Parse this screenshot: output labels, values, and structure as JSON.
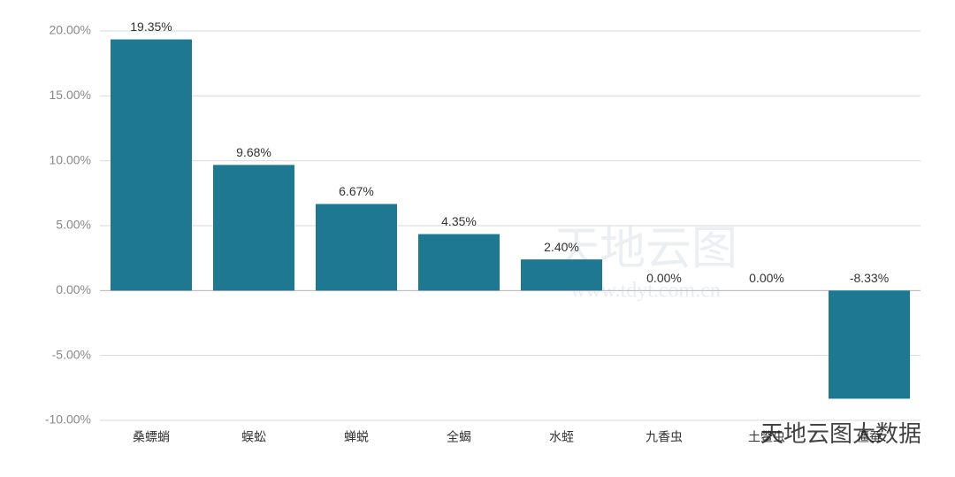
{
  "chart_data": {
    "type": "bar",
    "categories": [
      "桑螵蛸",
      "蜈蚣",
      "蝉蜕",
      "全蝎",
      "水蛭",
      "九香虫",
      "土鳖虫",
      "僵蚕"
    ],
    "values": [
      19.35,
      9.68,
      6.67,
      4.35,
      2.4,
      0.0,
      0.0,
      -8.33
    ],
    "value_labels": [
      "19.35%",
      "9.68%",
      "6.67%",
      "4.35%",
      "2.40%",
      "0.00%",
      "0.00%",
      "-8.33%"
    ],
    "color": "#1f7891",
    "ylim": [
      -10,
      20
    ],
    "yticks": [
      {
        "value": -10,
        "label": "-10.00%"
      },
      {
        "value": -5,
        "label": "-5.00%"
      },
      {
        "value": 0,
        "label": "0.00%"
      },
      {
        "value": 5,
        "label": "5.00%"
      },
      {
        "value": 10,
        "label": "10.00%"
      },
      {
        "value": 15,
        "label": "15.00%"
      },
      {
        "value": 20,
        "label": "20.00%"
      }
    ],
    "grid": true
  },
  "watermarks": [
    "天地云图",
    "www.tdyt.com.cn",
    "天地云图大数据"
  ]
}
